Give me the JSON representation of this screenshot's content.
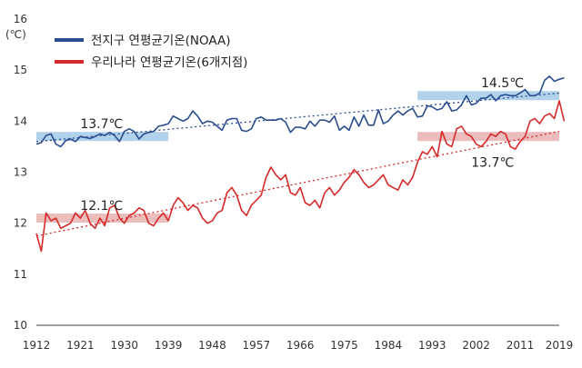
{
  "chart_data": {
    "type": "line",
    "unit_label": "(℃)",
    "xlim": [
      1912,
      2019
    ],
    "ylim": [
      10,
      16
    ],
    "x_ticks": [
      "1912",
      "1921",
      "1930",
      "1939",
      "1948",
      "1957",
      "1966",
      "1975",
      "1984",
      "1993",
      "2002",
      "2011",
      "2019"
    ],
    "y_ticks": [
      "10",
      "11",
      "12",
      "13",
      "14",
      "15",
      "16"
    ],
    "grid": false,
    "legend_position": "top-left",
    "series": [
      {
        "name": "전지구 연평균기온(NOAA)",
        "color": "#2a4d8f",
        "x_start": 1912,
        "values": [
          13.55,
          13.58,
          13.72,
          13.75,
          13.55,
          13.5,
          13.62,
          13.65,
          13.6,
          13.7,
          13.68,
          13.66,
          13.7,
          13.75,
          13.72,
          13.78,
          13.72,
          13.6,
          13.8,
          13.85,
          13.8,
          13.65,
          13.75,
          13.78,
          13.8,
          13.9,
          13.92,
          13.95,
          14.1,
          14.05,
          14.0,
          14.05,
          14.2,
          14.1,
          13.95,
          14.0,
          13.98,
          13.9,
          13.82,
          14.02,
          14.05,
          14.05,
          13.82,
          13.8,
          13.85,
          14.05,
          14.08,
          14.02,
          14.02,
          14.02,
          14.05,
          13.98,
          13.78,
          13.88,
          13.88,
          13.85,
          14.0,
          13.9,
          14.02,
          14.02,
          13.98,
          14.1,
          13.82,
          13.9,
          13.82,
          14.08,
          13.9,
          14.12,
          13.92,
          13.92,
          14.22,
          13.95,
          14.0,
          14.12,
          14.2,
          14.12,
          14.2,
          14.25,
          14.08,
          14.1,
          14.3,
          14.28,
          14.22,
          14.25,
          14.38,
          14.2,
          14.22,
          14.32,
          14.5,
          14.32,
          14.35,
          14.45,
          14.45,
          14.52,
          14.4,
          14.5,
          14.52,
          14.5,
          14.5,
          14.55,
          14.62,
          14.5,
          14.5,
          14.55,
          14.8,
          14.88,
          14.78,
          14.82,
          14.85
        ]
      },
      {
        "name": "우리나라 연평균기온(6개지점)",
        "color": "#d42a2a",
        "x_start": 1912,
        "values": [
          11.8,
          11.45,
          12.2,
          12.05,
          12.1,
          11.9,
          11.95,
          12.0,
          12.2,
          12.1,
          12.25,
          12.0,
          11.9,
          12.1,
          11.95,
          12.3,
          12.35,
          12.1,
          12.0,
          12.15,
          12.2,
          12.3,
          12.25,
          12.0,
          11.95,
          12.1,
          12.2,
          12.05,
          12.35,
          12.5,
          12.4,
          12.25,
          12.35,
          12.3,
          12.1,
          12.0,
          12.05,
          12.2,
          12.25,
          12.6,
          12.7,
          12.55,
          12.25,
          12.15,
          12.35,
          12.45,
          12.55,
          12.9,
          13.1,
          12.95,
          12.85,
          12.95,
          12.6,
          12.55,
          12.7,
          12.4,
          12.35,
          12.45,
          12.3,
          12.6,
          12.7,
          12.55,
          12.65,
          12.8,
          12.9,
          13.05,
          12.95,
          12.8,
          12.7,
          12.75,
          12.85,
          12.95,
          12.75,
          12.7,
          12.65,
          12.85,
          12.75,
          12.9,
          13.2,
          13.4,
          13.35,
          13.5,
          13.3,
          13.8,
          13.55,
          13.5,
          13.85,
          13.9,
          13.75,
          13.7,
          13.55,
          13.5,
          13.6,
          13.75,
          13.7,
          13.8,
          13.75,
          13.5,
          13.45,
          13.6,
          13.7,
          14.0,
          14.05,
          13.95,
          14.1,
          14.15,
          14.05,
          14.4,
          14.0
        ]
      }
    ],
    "trends": [
      {
        "series": 0,
        "from": [
          1912,
          13.6
        ],
        "to": [
          2019,
          14.55
        ]
      },
      {
        "series": 1,
        "from": [
          1912,
          11.75
        ],
        "to": [
          2019,
          13.8
        ]
      }
    ],
    "bands": [
      {
        "series": 0,
        "x": [
          1912,
          1939
        ],
        "y": 13.7,
        "label": "13.7℃",
        "label_x": 1921,
        "label_y": 13.95,
        "color": "#a9cde8"
      },
      {
        "series": 1,
        "x": [
          1912,
          1939
        ],
        "y": 12.1,
        "label": "12.1℃",
        "label_x": 1921,
        "label_y": 12.35,
        "color": "#eab6b6"
      },
      {
        "series": 0,
        "x": [
          1990,
          2019
        ],
        "y": 14.5,
        "label": "14.5℃",
        "label_x": 2003,
        "label_y": 14.75,
        "color": "#a9cde8"
      },
      {
        "series": 1,
        "x": [
          1990,
          2019
        ],
        "y": 13.7,
        "label": "13.7℃",
        "label_x": 2001,
        "label_y": 13.2,
        "color": "#eab6b6"
      }
    ]
  }
}
